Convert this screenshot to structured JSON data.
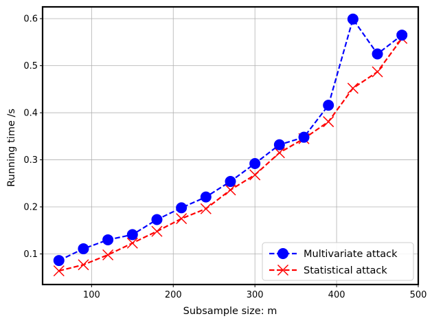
{
  "chart_data": {
    "type": "line",
    "title": "",
    "xlabel": "Subsample size:  m",
    "ylabel": "Running time /s",
    "xlim": [
      40,
      500
    ],
    "ylim": [
      0.035,
      0.625
    ],
    "xticks": [
      100,
      200,
      300,
      400,
      500
    ],
    "yticks": [
      0.1,
      0.2,
      0.3,
      0.4,
      0.5,
      0.6
    ],
    "xtick_labels": [
      "100",
      "200",
      "300",
      "400",
      "500"
    ],
    "ytick_labels": [
      "0.1",
      "0.2",
      "0.3",
      "0.4",
      "0.5",
      "0.6"
    ],
    "grid": true,
    "legend_position": "lower-right",
    "x": [
      60,
      90,
      120,
      150,
      180,
      210,
      240,
      270,
      300,
      330,
      360,
      390,
      420,
      450,
      480
    ],
    "series": [
      {
        "name": "Multivariate attack",
        "color": "#0000ff",
        "marker": "circle",
        "line_style": "dashed",
        "values": [
          0.086,
          0.111,
          0.13,
          0.141,
          0.173,
          0.198,
          0.221,
          0.254,
          0.292,
          0.332,
          0.348,
          0.416,
          0.599,
          0.525,
          0.565
        ]
      },
      {
        "name": "Statistical attack",
        "color": "#ff0000",
        "marker": "x",
        "line_style": "dashed",
        "values": [
          0.064,
          0.077,
          0.098,
          0.123,
          0.148,
          0.175,
          0.196,
          0.236,
          0.268,
          0.315,
          0.345,
          0.381,
          0.452,
          0.487,
          0.558
        ]
      }
    ]
  }
}
